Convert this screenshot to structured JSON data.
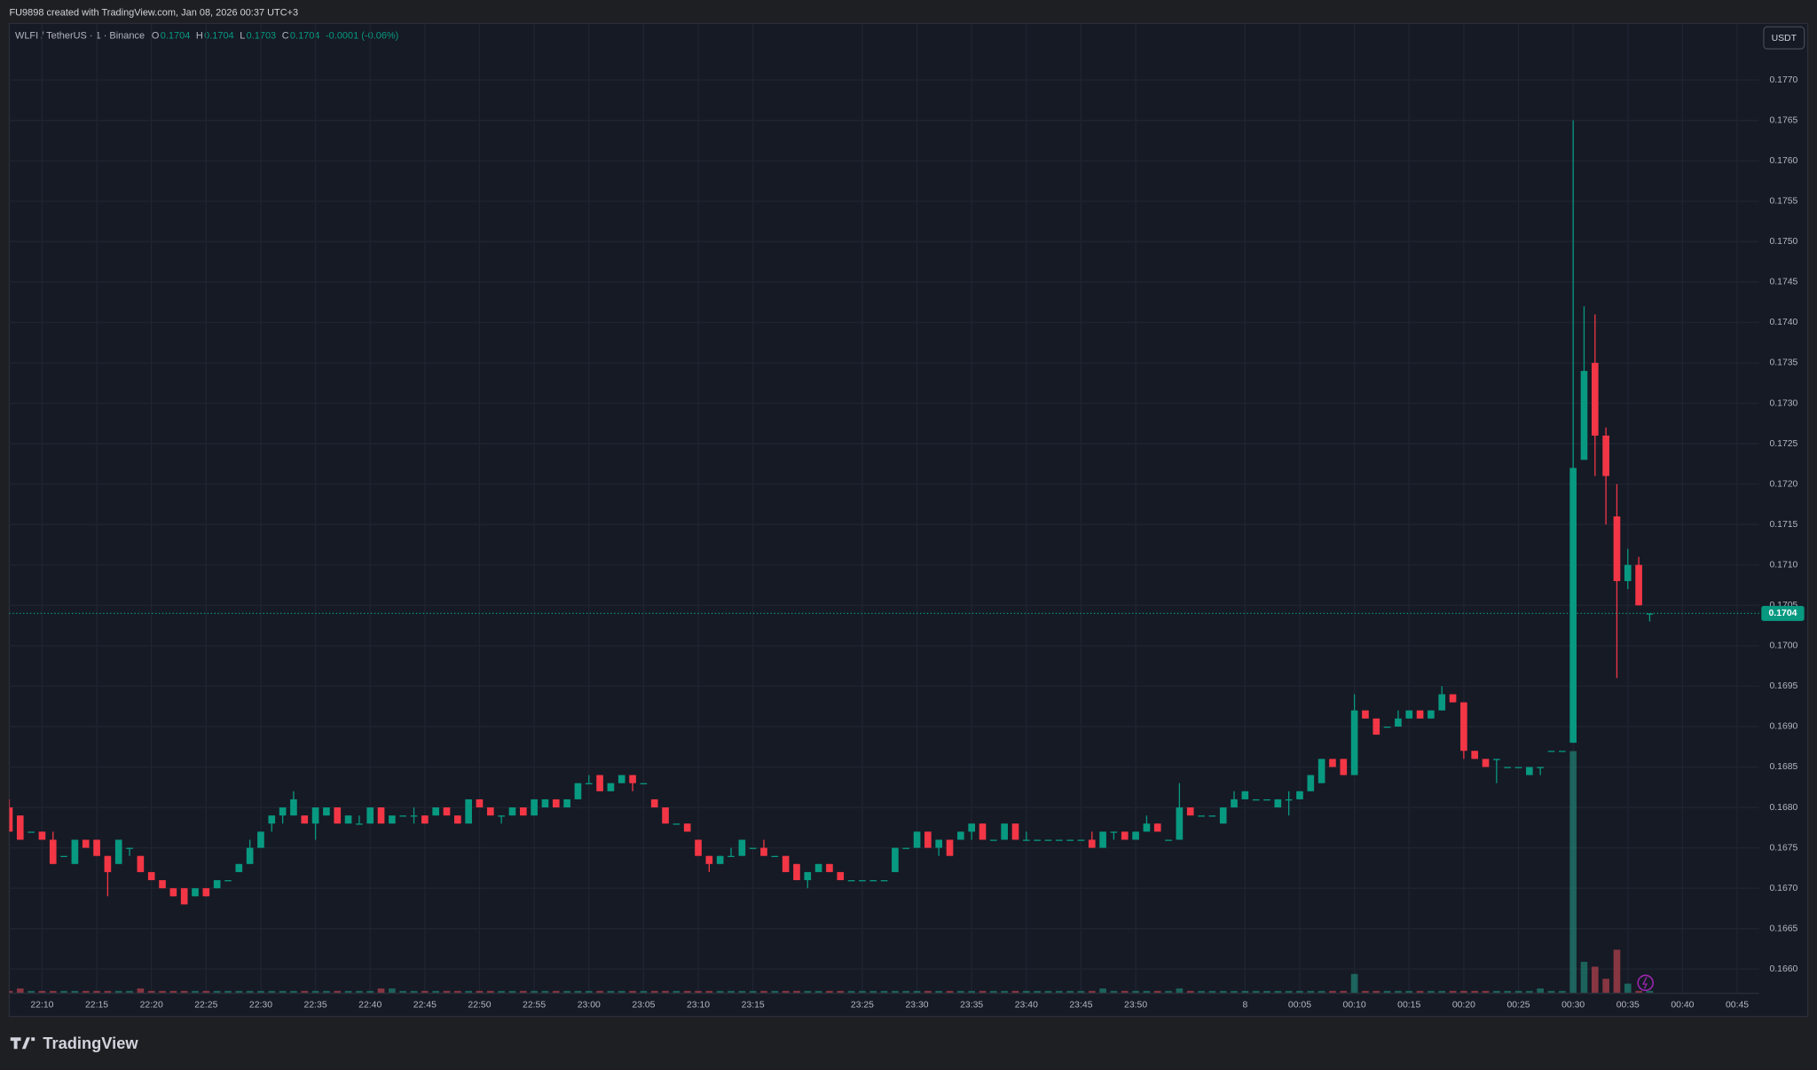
{
  "header": {
    "credit": "FU9898 created with TradingView.com, Jan 08, 2026 00:37 UTC+3",
    "symbol": "WLFI / TetherUS · 1 · Binance",
    "ohlc": [
      {
        "label": "O",
        "value": "0.1704"
      },
      {
        "label": "H",
        "value": "0.1704"
      },
      {
        "label": "L",
        "value": "0.1703"
      },
      {
        "label": "C",
        "value": "0.1704"
      }
    ],
    "change": "-0.0001 (-0.06%)",
    "currency": "USDT",
    "brand": "TradingView"
  },
  "chart_data": {
    "type": "candlestick",
    "up_color": "#089981",
    "down_color": "#f23645",
    "volume_up_color": "#22ab94",
    "volume_down_color": "#f7525f",
    "grid": true,
    "xlim": [
      "22:07",
      "00:47"
    ],
    "ylim": [
      0.1657,
      0.1777
    ],
    "yticks": [
      {
        "value": 0.166,
        "label": "0.1660"
      },
      0.1665,
      {
        "value": 0.167,
        "label": "0.1670"
      },
      0.1675,
      {
        "value": 0.168,
        "label": "0.1680"
      },
      0.1685,
      {
        "value": 0.169,
        "label": "0.1690"
      },
      0.1695,
      {
        "value": 0.17,
        "label": "0.1700"
      },
      0.1705,
      {
        "value": 0.171,
        "label": "0.1710"
      },
      0.1715,
      {
        "value": 0.172,
        "label": "0.1720"
      },
      0.1725,
      {
        "value": 0.173,
        "label": "0.1730"
      },
      0.1735,
      {
        "value": 0.174,
        "label": "0.1740"
      },
      0.1745,
      {
        "value": 0.175,
        "label": "0.1750"
      },
      0.1755,
      {
        "value": 0.176,
        "label": "0.1760"
      },
      0.1765,
      {
        "value": 0.177,
        "label": "0.1770"
      }
    ],
    "xticks": [
      "22:10",
      "22:15",
      "22:20",
      "22:25",
      "22:30",
      "22:35",
      "22:40",
      "22:45",
      "22:50",
      "22:55",
      "23:00",
      "23:05",
      "23:10",
      "23:15",
      "23:25",
      "23:30",
      "23:35",
      "23:40",
      "23:45",
      "23:50",
      {
        "value": "00:00",
        "label": "8"
      },
      "00:05",
      "00:10",
      "00:15",
      "00:20",
      "00:25",
      "00:30",
      "00:35",
      "00:40",
      "00:45"
    ],
    "last_price": {
      "value": 0.1704,
      "label": "0.1704"
    },
    "x": [
      "22:07",
      "22:08",
      "22:09",
      "22:10",
      "22:11",
      "22:12",
      "22:13",
      "22:14",
      "22:15",
      "22:16",
      "22:17",
      "22:18",
      "22:19",
      "22:20",
      "22:21",
      "22:22",
      "22:23",
      "22:24",
      "22:25",
      "22:26",
      "22:27",
      "22:28",
      "22:29",
      "22:30",
      "22:31",
      "22:32",
      "22:33",
      "22:34",
      "22:35",
      "22:36",
      "22:37",
      "22:38",
      "22:39",
      "22:40",
      "22:41",
      "22:42",
      "22:43",
      "22:44",
      "22:45",
      "22:46",
      "22:47",
      "22:48",
      "22:49",
      "22:50",
      "22:51",
      "22:52",
      "22:53",
      "22:54",
      "22:55",
      "22:56",
      "22:57",
      "22:58",
      "22:59",
      "23:00",
      "23:01",
      "23:02",
      "23:03",
      "23:04",
      "23:05",
      "23:06",
      "23:07",
      "23:08",
      "23:09",
      "23:10",
      "23:11",
      "23:12",
      "23:13",
      "23:14",
      "23:15",
      "23:16",
      "23:17",
      "23:18",
      "23:19",
      "23:20",
      "23:21",
      "23:22",
      "23:23",
      "23:24",
      "23:25",
      "23:26",
      "23:27",
      "23:28",
      "23:29",
      "23:30",
      "23:31",
      "23:32",
      "23:33",
      "23:34",
      "23:35",
      "23:36",
      "23:37",
      "23:38",
      "23:39",
      "23:40",
      "23:41",
      "23:42",
      "23:43",
      "23:44",
      "23:45",
      "23:46",
      "23:47",
      "23:48",
      "23:49",
      "23:50",
      "23:51",
      "23:52",
      "23:53",
      "23:54",
      "23:55",
      "23:56",
      "23:57",
      "23:58",
      "23:59",
      "00:00",
      "00:01",
      "00:02",
      "00:03",
      "00:04",
      "00:05",
      "00:06",
      "00:07",
      "00:08",
      "00:09",
      "00:10",
      "00:11",
      "00:12",
      "00:13",
      "00:14",
      "00:15",
      "00:16",
      "00:17",
      "00:18",
      "00:19",
      "00:20",
      "00:21",
      "00:22",
      "00:23",
      "00:24",
      "00:25",
      "00:26",
      "00:27",
      "00:28",
      "00:29",
      "00:30",
      "00:31",
      "00:32",
      "00:33",
      "00:34",
      "00:35",
      "00:36",
      "00:37"
    ],
    "ohlc": [
      [
        0.168,
        0.1681,
        0.1677,
        0.1677
      ],
      [
        0.1679,
        0.1679,
        0.1676,
        0.1676
      ],
      [
        0.1677,
        0.1677,
        0.1677,
        0.1677
      ],
      [
        0.1677,
        0.1677,
        0.1676,
        0.1676
      ],
      [
        0.1676,
        0.1677,
        0.1673,
        0.1673
      ],
      [
        0.1674,
        0.1674,
        0.1674,
        0.1674
      ],
      [
        0.1673,
        0.1676,
        0.1673,
        0.1676
      ],
      [
        0.1676,
        0.1676,
        0.1675,
        0.1675
      ],
      [
        0.1676,
        0.1676,
        0.1674,
        0.1674
      ],
      [
        0.1674,
        0.1674,
        0.1669,
        0.1672
      ],
      [
        0.1673,
        0.1676,
        0.1673,
        0.1676
      ],
      [
        0.1675,
        0.1675,
        0.1674,
        0.1675
      ],
      [
        0.1674,
        0.1674,
        0.1672,
        0.1672
      ],
      [
        0.1672,
        0.1672,
        0.1671,
        0.1671
      ],
      [
        0.1671,
        0.1671,
        0.167,
        0.167
      ],
      [
        0.167,
        0.167,
        0.1669,
        0.1669
      ],
      [
        0.167,
        0.167,
        0.1668,
        0.1668
      ],
      [
        0.1669,
        0.167,
        0.1669,
        0.167
      ],
      [
        0.167,
        0.167,
        0.1669,
        0.1669
      ],
      [
        0.167,
        0.1671,
        0.167,
        0.1671
      ],
      [
        0.1671,
        0.1671,
        0.1671,
        0.1671
      ],
      [
        0.1672,
        0.1673,
        0.1672,
        0.1673
      ],
      [
        0.1673,
        0.1676,
        0.1673,
        0.1675
      ],
      [
        0.1675,
        0.1677,
        0.1675,
        0.1677
      ],
      [
        0.1678,
        0.1679,
        0.1677,
        0.1679
      ],
      [
        0.1679,
        0.168,
        0.1678,
        0.168
      ],
      [
        0.1679,
        0.1682,
        0.1679,
        0.1681
      ],
      [
        0.1679,
        0.1679,
        0.1678,
        0.1678
      ],
      [
        0.1678,
        0.168,
        0.1676,
        0.168
      ],
      [
        0.1679,
        0.168,
        0.1679,
        0.168
      ],
      [
        0.168,
        0.168,
        0.1678,
        0.1678
      ],
      [
        0.1678,
        0.1679,
        0.1678,
        0.1679
      ],
      [
        0.1678,
        0.1679,
        0.1678,
        0.1678
      ],
      [
        0.1678,
        0.168,
        0.1678,
        0.168
      ],
      [
        0.168,
        0.168,
        0.1678,
        0.1678
      ],
      [
        0.1678,
        0.1679,
        0.1678,
        0.1679
      ],
      [
        0.1679,
        0.1679,
        0.1679,
        0.1679
      ],
      [
        0.1679,
        0.168,
        0.1678,
        0.1679
      ],
      [
        0.1679,
        0.1679,
        0.1678,
        0.1678
      ],
      [
        0.1679,
        0.168,
        0.1679,
        0.168
      ],
      [
        0.168,
        0.168,
        0.1679,
        0.1679
      ],
      [
        0.1679,
        0.1679,
        0.1678,
        0.1678
      ],
      [
        0.1678,
        0.1681,
        0.1678,
        0.1681
      ],
      [
        0.1681,
        0.1681,
        0.168,
        0.168
      ],
      [
        0.168,
        0.168,
        0.1679,
        0.1679
      ],
      [
        0.1679,
        0.1679,
        0.1678,
        0.1679
      ],
      [
        0.1679,
        0.168,
        0.1679,
        0.168
      ],
      [
        0.168,
        0.168,
        0.1679,
        0.1679
      ],
      [
        0.1679,
        0.1681,
        0.1679,
        0.1681
      ],
      [
        0.168,
        0.1681,
        0.168,
        0.1681
      ],
      [
        0.1681,
        0.1681,
        0.168,
        0.168
      ],
      [
        0.168,
        0.1681,
        0.168,
        0.1681
      ],
      [
        0.1681,
        0.1683,
        0.1681,
        0.1683
      ],
      [
        0.1683,
        0.1684,
        0.1683,
        0.1683
      ],
      [
        0.1684,
        0.1684,
        0.1682,
        0.1682
      ],
      [
        0.1682,
        0.1683,
        0.1682,
        0.1683
      ],
      [
        0.1683,
        0.1684,
        0.1683,
        0.1684
      ],
      [
        0.1684,
        0.1684,
        0.1682,
        0.1683
      ],
      [
        0.1683,
        0.1683,
        0.1683,
        0.1683
      ],
      [
        0.1681,
        0.1681,
        0.168,
        0.168
      ],
      [
        0.168,
        0.168,
        0.1678,
        0.1678
      ],
      [
        0.1678,
        0.1678,
        0.1678,
        0.1678
      ],
      [
        0.1678,
        0.1678,
        0.1677,
        0.1677
      ],
      [
        0.1676,
        0.1676,
        0.1674,
        0.1674
      ],
      [
        0.1674,
        0.1674,
        0.1672,
        0.1673
      ],
      [
        0.1673,
        0.1674,
        0.1673,
        0.1674
      ],
      [
        0.1674,
        0.1675,
        0.1674,
        0.1674
      ],
      [
        0.1674,
        0.1676,
        0.1674,
        0.1676
      ],
      [
        0.1675,
        0.1675,
        0.1675,
        0.1675
      ],
      [
        0.1675,
        0.1676,
        0.1674,
        0.1674
      ],
      [
        0.1674,
        0.1674,
        0.1674,
        0.1674
      ],
      [
        0.1674,
        0.1674,
        0.1672,
        0.1672
      ],
      [
        0.1673,
        0.1673,
        0.1671,
        0.1671
      ],
      [
        0.1671,
        0.1672,
        0.167,
        0.1672
      ],
      [
        0.1672,
        0.1673,
        0.1672,
        0.1673
      ],
      [
        0.1673,
        0.1673,
        0.1672,
        0.1672
      ],
      [
        0.1672,
        0.1672,
        0.1671,
        0.1671
      ],
      [
        0.1671,
        0.1671,
        0.1671,
        0.1671
      ],
      [
        0.1671,
        0.1671,
        0.1671,
        0.1671
      ],
      [
        0.1671,
        0.1671,
        0.1671,
        0.1671
      ],
      [
        0.1671,
        0.1671,
        0.1671,
        0.1671
      ],
      [
        0.1672,
        0.1675,
        0.1672,
        0.1675
      ],
      [
        0.1675,
        0.1675,
        0.1675,
        0.1675
      ],
      [
        0.1675,
        0.1677,
        0.1675,
        0.1677
      ],
      [
        0.1677,
        0.1677,
        0.1675,
        0.1675
      ],
      [
        0.1675,
        0.1676,
        0.1674,
        0.1676
      ],
      [
        0.1676,
        0.1676,
        0.1674,
        0.1674
      ],
      [
        0.1676,
        0.1677,
        0.1676,
        0.1677
      ],
      [
        0.1677,
        0.1678,
        0.1676,
        0.1678
      ],
      [
        0.1678,
        0.1678,
        0.1676,
        0.1676
      ],
      [
        0.1676,
        0.1676,
        0.1676,
        0.1676
      ],
      [
        0.1676,
        0.1678,
        0.1676,
        0.1678
      ],
      [
        0.1678,
        0.1678,
        0.1676,
        0.1676
      ],
      [
        0.1676,
        0.1677,
        0.1676,
        0.1676
      ],
      [
        0.1676,
        0.1676,
        0.1676,
        0.1676
      ],
      [
        0.1676,
        0.1676,
        0.1676,
        0.1676
      ],
      [
        0.1676,
        0.1676,
        0.1676,
        0.1676
      ],
      [
        0.1676,
        0.1676,
        0.1676,
        0.1676
      ],
      [
        0.1676,
        0.1676,
        0.1676,
        0.1676
      ],
      [
        0.1676,
        0.1677,
        0.1675,
        0.1675
      ],
      [
        0.1675,
        0.1677,
        0.1675,
        0.1677
      ],
      [
        0.1677,
        0.1677,
        0.1676,
        0.1677
      ],
      [
        0.1677,
        0.1677,
        0.1676,
        0.1676
      ],
      [
        0.1676,
        0.1677,
        0.1676,
        0.1677
      ],
      [
        0.1677,
        0.1679,
        0.1677,
        0.1678
      ],
      [
        0.1678,
        0.1678,
        0.1677,
        0.1677
      ],
      [
        0.1676,
        0.1676,
        0.1676,
        0.1676
      ],
      [
        0.1676,
        0.1683,
        0.1676,
        0.168
      ],
      [
        0.168,
        0.168,
        0.1679,
        0.1679
      ],
      [
        0.1679,
        0.1679,
        0.1679,
        0.1679
      ],
      [
        0.1679,
        0.1679,
        0.1679,
        0.1679
      ],
      [
        0.1678,
        0.168,
        0.1678,
        0.168
      ],
      [
        0.168,
        0.1682,
        0.168,
        0.1681
      ],
      [
        0.1681,
        0.1682,
        0.1681,
        0.1682
      ],
      [
        0.1681,
        0.1681,
        0.1681,
        0.1681
      ],
      [
        0.1681,
        0.1681,
        0.1681,
        0.1681
      ],
      [
        0.168,
        0.1681,
        0.168,
        0.1681
      ],
      [
        0.1681,
        0.1682,
        0.1679,
        0.1681
      ],
      [
        0.1681,
        0.1682,
        0.1681,
        0.1682
      ],
      [
        0.1682,
        0.1684,
        0.1682,
        0.1684
      ],
      [
        0.1683,
        0.1686,
        0.1683,
        0.1686
      ],
      [
        0.1686,
        0.1686,
        0.1685,
        0.1685
      ],
      [
        0.1686,
        0.1686,
        0.1684,
        0.1684
      ],
      [
        0.1684,
        0.1694,
        0.1684,
        0.1692
      ],
      [
        0.1692,
        0.1692,
        0.1691,
        0.1691
      ],
      [
        0.1691,
        0.1691,
        0.1689,
        0.1689
      ],
      [
        0.169,
        0.169,
        0.169,
        0.169
      ],
      [
        0.169,
        0.1692,
        0.169,
        0.1691
      ],
      [
        0.1691,
        0.1692,
        0.1691,
        0.1692
      ],
      [
        0.1692,
        0.1692,
        0.1691,
        0.1691
      ],
      [
        0.1691,
        0.1692,
        0.1691,
        0.1692
      ],
      [
        0.1692,
        0.1695,
        0.1692,
        0.1694
      ],
      [
        0.1694,
        0.1694,
        0.1693,
        0.1693
      ],
      [
        0.1693,
        0.1693,
        0.1686,
        0.1687
      ],
      [
        0.1687,
        0.1687,
        0.1686,
        0.1686
      ],
      [
        0.1686,
        0.1686,
        0.1685,
        0.1685
      ],
      [
        0.1686,
        0.1686,
        0.1683,
        0.1686
      ],
      [
        0.1685,
        0.1685,
        0.1685,
        0.1685
      ],
      [
        0.1685,
        0.1685,
        0.1685,
        0.1685
      ],
      [
        0.1684,
        0.1685,
        0.1684,
        0.1685
      ],
      [
        0.1685,
        0.1685,
        0.1684,
        0.1685
      ],
      [
        0.1687,
        0.1687,
        0.1687,
        0.1687
      ],
      [
        0.1687,
        0.1687,
        0.1687,
        0.1687
      ],
      [
        0.1688,
        0.1765,
        0.1688,
        0.1722
      ],
      [
        0.1723,
        0.1742,
        0.1723,
        0.1734
      ],
      [
        0.1735,
        0.1741,
        0.1721,
        0.1726
      ],
      [
        0.1726,
        0.1727,
        0.1715,
        0.1721
      ],
      [
        0.1716,
        0.172,
        0.1696,
        0.1708
      ],
      [
        0.1708,
        0.1712,
        0.1707,
        0.171
      ],
      [
        0.171,
        0.1711,
        0.1705,
        0.1705
      ],
      [
        0.1704,
        0.1704,
        0.1703,
        0.1704
      ]
    ],
    "volume": [
      1,
      2,
      1,
      1,
      1,
      1,
      1,
      1,
      1,
      1,
      1,
      1,
      2,
      1,
      1,
      1,
      1,
      1,
      1,
      1,
      1,
      1,
      1,
      1,
      1,
      1,
      1,
      1,
      1,
      1,
      1,
      1,
      1,
      1,
      2,
      2,
      1,
      1,
      1,
      1,
      1,
      1,
      1,
      1,
      1,
      1,
      1,
      1,
      1,
      1,
      1,
      1,
      1,
      1,
      1,
      1,
      1,
      1,
      1,
      1,
      1,
      1,
      1,
      1,
      1,
      1,
      1,
      1,
      1,
      1,
      1,
      1,
      1,
      1,
      1,
      1,
      1,
      1,
      1,
      1,
      1,
      1,
      1,
      1,
      1,
      1,
      1,
      1,
      1,
      1,
      1,
      1,
      1,
      1,
      1,
      1,
      1,
      1,
      1,
      1,
      2,
      1,
      1,
      1,
      1,
      1,
      1,
      2,
      1,
      1,
      1,
      1,
      1,
      1,
      1,
      1,
      1,
      1,
      1,
      1,
      1,
      1,
      1,
      8,
      1,
      1,
      1,
      1,
      1,
      1,
      1,
      1,
      1,
      1,
      1,
      1,
      1,
      1,
      1,
      1,
      2,
      1,
      1,
      100,
      13,
      11,
      6,
      18,
      4,
      1,
      1
    ]
  }
}
